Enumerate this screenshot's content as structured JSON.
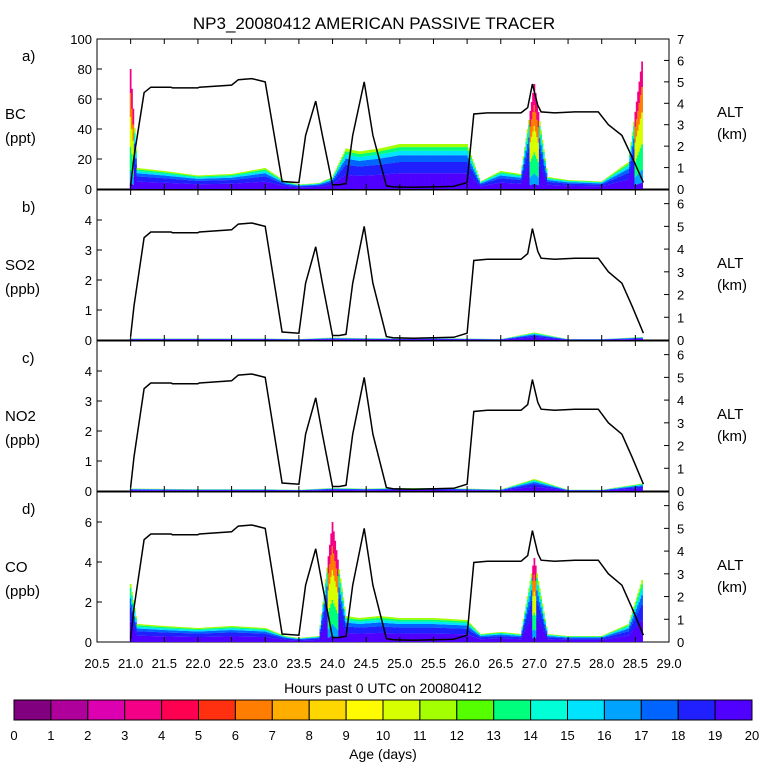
{
  "chart_data": {
    "type": "area",
    "title": "NP3_20080412 AMERICAN PASSIVE TRACER",
    "xlabel": "Hours past 0 UTC on 20080412",
    "xlim": [
      20.5,
      29.0
    ],
    "x_ticks": [
      20.5,
      21.0,
      21.5,
      22.0,
      22.5,
      23.0,
      23.5,
      24.0,
      24.5,
      25.0,
      25.5,
      26.0,
      26.5,
      27.0,
      27.5,
      28.0,
      28.5,
      29.0
    ],
    "x_tick_labels": [
      "20.5",
      "21.0",
      "21.5",
      "22.0",
      "22.5",
      "23.0",
      "23.5",
      "24.0",
      "24.5",
      "25.0",
      "25.5",
      "26.0",
      "26.5",
      "27.0",
      "27.5",
      "28.0",
      "28.5",
      "29.0"
    ],
    "right_axis": {
      "label": "ALT",
      "units": "(km)",
      "ticks": [
        "0",
        "1",
        "2",
        "3",
        "4",
        "5",
        "6"
      ]
    },
    "panels": [
      {
        "id": "a",
        "letter": "a)",
        "species": "BC",
        "units": "(ppt)",
        "ylim": [
          0,
          100
        ],
        "y_ticks": [
          "0",
          "20",
          "40",
          "60",
          "80",
          "100"
        ],
        "alt_ylim": [
          0,
          7
        ],
        "alt_ticks": [
          "0",
          "1",
          "2",
          "3",
          "4",
          "5",
          "6",
          "7"
        ],
        "tracer_profile": {
          "x": [
            21.0,
            21.1,
            21.5,
            22.0,
            22.5,
            23.0,
            23.3,
            23.5,
            23.8,
            24.0,
            24.2,
            24.4,
            24.7,
            25.0,
            25.5,
            26.0,
            26.2,
            26.5,
            26.8,
            27.0,
            27.2,
            27.5,
            28.0,
            28.4,
            28.6
          ],
          "total": [
            80,
            14,
            12,
            9,
            10,
            14,
            5,
            3,
            4,
            8,
            27,
            25,
            27,
            30,
            30,
            30,
            5,
            12,
            10,
            70,
            8,
            6,
            5,
            18,
            85
          ]
        }
      },
      {
        "id": "b",
        "letter": "b)",
        "species": "SO2",
        "units": "(ppb)",
        "ylim": [
          0,
          5
        ],
        "y_ticks": [
          "0",
          "1",
          "2",
          "3",
          "4"
        ],
        "alt_ylim": [
          0,
          6.6
        ],
        "alt_ticks": [
          "0",
          "1",
          "2",
          "3",
          "4",
          "5",
          "6"
        ],
        "tracer_profile": {
          "x": [
            21.0,
            22.0,
            23.0,
            23.5,
            24.0,
            24.5,
            25.0,
            25.5,
            26.0,
            26.5,
            27.0,
            27.5,
            28.0,
            28.6
          ],
          "total": [
            0.05,
            0.05,
            0.05,
            0.03,
            0.08,
            0.06,
            0.05,
            0.06,
            0.05,
            0.03,
            0.25,
            0.03,
            0.03,
            0.1
          ]
        }
      },
      {
        "id": "c",
        "letter": "c)",
        "species": "NO2",
        "units": "(ppb)",
        "ylim": [
          0,
          5
        ],
        "y_ticks": [
          "0",
          "1",
          "2",
          "3",
          "4"
        ],
        "alt_ylim": [
          0,
          6.6
        ],
        "alt_ticks": [
          "0",
          "1",
          "2",
          "3",
          "4",
          "5",
          "6"
        ],
        "tracer_profile": {
          "x": [
            21.0,
            22.0,
            23.0,
            23.5,
            24.0,
            24.5,
            25.0,
            25.5,
            26.0,
            26.5,
            27.0,
            27.5,
            28.0,
            28.6
          ],
          "total": [
            0.08,
            0.06,
            0.06,
            0.04,
            0.1,
            0.08,
            0.1,
            0.1,
            0.08,
            0.05,
            0.4,
            0.04,
            0.04,
            0.25
          ]
        }
      },
      {
        "id": "d",
        "letter": "d)",
        "species": "CO",
        "units": "(ppb)",
        "ylim": [
          0,
          7.5
        ],
        "y_ticks": [
          "0",
          "2",
          "4",
          "6"
        ],
        "alt_ylim": [
          0,
          6.6
        ],
        "alt_ticks": [
          "0",
          "1",
          "2",
          "3",
          "4",
          "5",
          "6"
        ],
        "tracer_profile": {
          "x": [
            21.0,
            21.1,
            21.5,
            22.0,
            22.5,
            23.0,
            23.3,
            23.5,
            23.8,
            24.0,
            24.2,
            24.4,
            24.7,
            25.0,
            25.5,
            26.0,
            26.2,
            26.5,
            26.8,
            27.0,
            27.2,
            27.5,
            28.0,
            28.4,
            28.6
          ],
          "total": [
            2.9,
            0.9,
            0.8,
            0.7,
            0.8,
            0.7,
            0.3,
            0.2,
            0.3,
            6.0,
            1.3,
            1.2,
            1.3,
            1.2,
            1.2,
            1.1,
            0.4,
            0.5,
            0.4,
            4.2,
            0.4,
            0.3,
            0.3,
            0.9,
            3.1
          ]
        }
      }
    ],
    "altitude_km": {
      "x": [
        21.0,
        21.05,
        21.2,
        21.3,
        21.6,
        21.62,
        22.0,
        22.02,
        22.5,
        22.6,
        22.8,
        23.0,
        23.25,
        23.5,
        23.6,
        23.75,
        23.85,
        24.0,
        24.1,
        24.2,
        24.3,
        24.47,
        24.6,
        24.8,
        24.9,
        25.2,
        25.5,
        25.8,
        26.0,
        26.1,
        26.3,
        26.6,
        26.8,
        26.9,
        26.97,
        27.05,
        27.1,
        27.3,
        27.6,
        27.95,
        28.1,
        28.3,
        28.45,
        28.62
      ],
      "alt": [
        0.15,
        1.5,
        4.5,
        4.75,
        4.75,
        4.72,
        4.72,
        4.75,
        4.85,
        5.1,
        5.15,
        5.0,
        0.35,
        0.3,
        2.5,
        4.1,
        2.5,
        0.2,
        0.2,
        0.25,
        2.5,
        5.0,
        2.5,
        0.15,
        0.1,
        0.08,
        0.1,
        0.12,
        0.3,
        3.5,
        3.55,
        3.55,
        3.55,
        3.8,
        4.9,
        3.9,
        3.6,
        3.55,
        3.6,
        3.6,
        3.0,
        2.5,
        1.5,
        0.3
      ]
    },
    "colorbar": {
      "label": "Age (days)",
      "tick_labels": [
        "0",
        "1",
        "2",
        "3",
        "4",
        "5",
        "6",
        "7",
        "8",
        "9",
        "10",
        "11",
        "12",
        "13",
        "14",
        "15",
        "16",
        "17",
        "18",
        "19",
        "20"
      ],
      "colors": [
        "#800080",
        "#b0009c",
        "#dd00b0",
        "#f40087",
        "#ff0050",
        "#ff3010",
        "#ff7d00",
        "#ffae00",
        "#ffd700",
        "#fffb00",
        "#d7ff00",
        "#a4ff00",
        "#55ff00",
        "#00ff7d",
        "#00ffd7",
        "#00e3ff",
        "#00a4ff",
        "#0064ff",
        "#2020ff",
        "#4f00ff"
      ]
    }
  }
}
